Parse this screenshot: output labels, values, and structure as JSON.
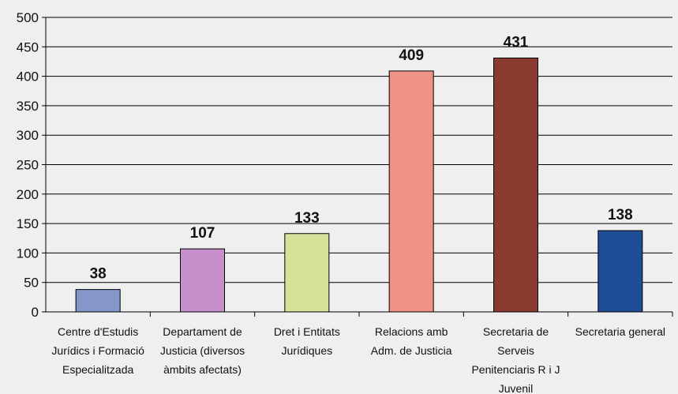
{
  "chart_data": {
    "type": "bar",
    "categories": [
      [
        "Centre d'Estudis",
        "Jurídics i Formació",
        "Especialitzada"
      ],
      [
        "Departament de",
        "Justicia (diversos",
        "àmbits afectats)"
      ],
      [
        "Dret i Entitats",
        "Jurídiques"
      ],
      [
        "Relacions amb",
        "Adm. de Justicia"
      ],
      [
        "Secretaria de",
        "Serveis",
        "Penitenciaris R i J",
        "Juvenil"
      ],
      [
        "Secretaria general"
      ]
    ],
    "values": [
      38,
      107,
      133,
      409,
      431,
      138
    ],
    "data_labels": [
      "38",
      "107",
      "133",
      "409",
      "431",
      "138"
    ],
    "y_ticks": [
      "0",
      "50",
      "100",
      "150",
      "200",
      "250",
      "300",
      "350",
      "400",
      "450",
      "500"
    ],
    "ylim": [
      0,
      500
    ],
    "grid": true,
    "title": "",
    "xlabel": "",
    "ylabel": "",
    "bar_colors": [
      "#8497c8",
      "#c790cc",
      "#d6e29a",
      "#ef9385",
      "#8b3a2f",
      "#1f4e96"
    ],
    "background": "#efefef",
    "grid_color": "#000000"
  }
}
